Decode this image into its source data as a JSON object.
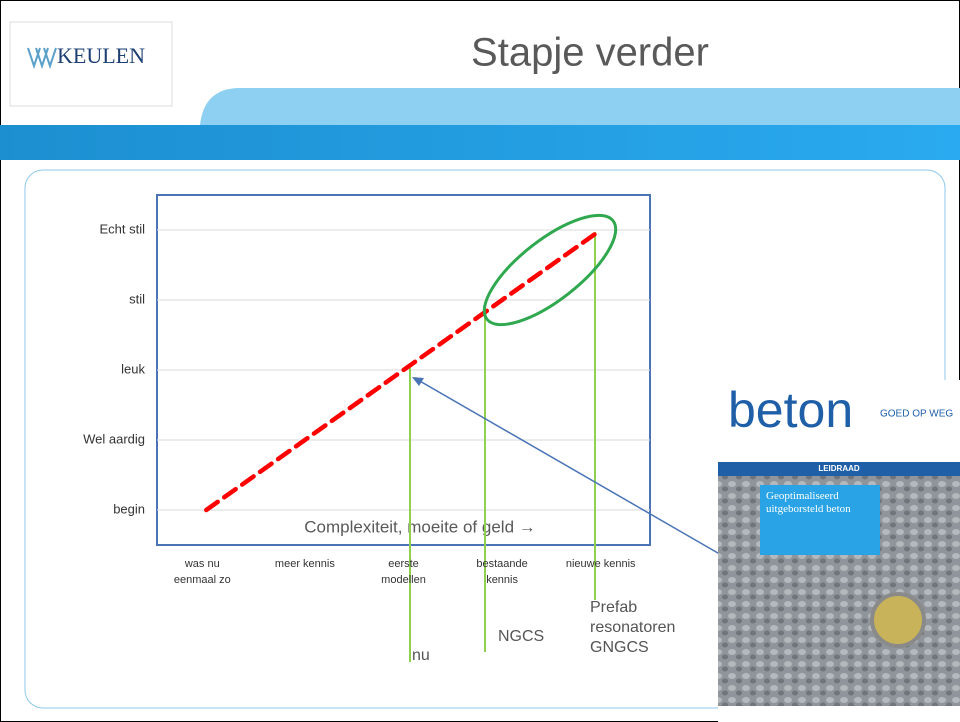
{
  "header": {
    "logo": "KEULEN",
    "title": "Stapje verder"
  },
  "chart_data": {
    "type": "line",
    "categories": [
      "was nu eenmaal zo",
      "meer kennis",
      "eerste modellen",
      "bestaande kennis",
      "nieuwe kennis"
    ],
    "series": [
      {
        "color": "#ff0000",
        "values": [
          0,
          1,
          2,
          3,
          4
        ]
      }
    ],
    "ylim": [
      -0.5,
      4.5
    ],
    "yticks": [
      {
        "value": 0,
        "label": "begin"
      },
      {
        "value": 1,
        "label": "Wel aardig"
      },
      {
        "value": 2,
        "label": "leuk"
      },
      {
        "value": 3,
        "label": "stil"
      },
      {
        "value": 4,
        "label": "Echt stil"
      }
    ],
    "grid": true,
    "xlabel": "Complexiteit, moeite of geld →",
    "annotations": [
      "nu",
      "NGCS",
      "Prefab resonatoren GNGCS"
    ]
  },
  "book": {
    "title": "beton",
    "tag": "GOED OP WEG",
    "series": "LEIDRAAD",
    "subtitle": "Geoptimaliseerd uitgeborsteld beton"
  }
}
